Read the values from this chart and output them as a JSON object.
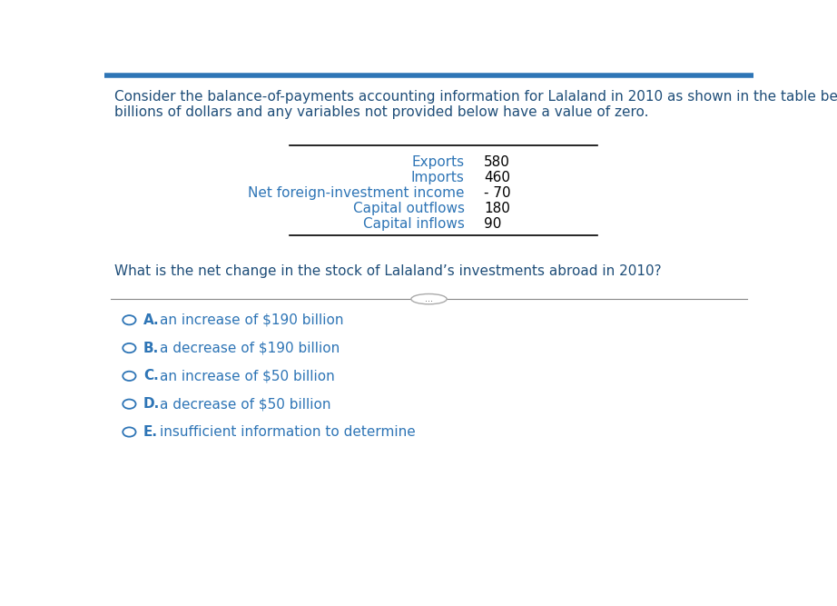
{
  "header_text_line1": "Consider the balance-of-payments accounting information for Lalaland in 2010 as shown in the table below. All values are in",
  "header_text_line2": "billions of dollars and any variables not provided below have a value of zero.",
  "table_rows": [
    [
      "Exports",
      "580"
    ],
    [
      "Imports",
      "460"
    ],
    [
      "Net foreign-investment income",
      "- 70"
    ],
    [
      "Capital outflows",
      "180"
    ],
    [
      "Capital inflows",
      "90"
    ]
  ],
  "question_text": "What is the net change in the stock of Lalaland’s investments abroad in 2010?",
  "options": [
    [
      "A.",
      "an increase of $190 billion"
    ],
    [
      "B.",
      "a decrease of $190 billion"
    ],
    [
      "C.",
      "an increase of $50 billion"
    ],
    [
      "D.",
      "a decrease of $50 billion"
    ],
    [
      "E.",
      "insufficient information to determine"
    ]
  ],
  "background_color": "#ffffff",
  "top_border_color": "#2E75B6",
  "text_color": "#000000",
  "header_color": "#1F4E79",
  "question_color": "#1F4E79",
  "option_color": "#2E75B6",
  "table_label_color": "#2E75B6",
  "table_value_color": "#000000",
  "header_fontsize": 11.0,
  "table_fontsize": 11.0,
  "question_fontsize": 11.0,
  "option_fontsize": 11.0,
  "circle_color": "#2E75B6",
  "separator_line_color": "#888888",
  "table_line_color": "#000000"
}
